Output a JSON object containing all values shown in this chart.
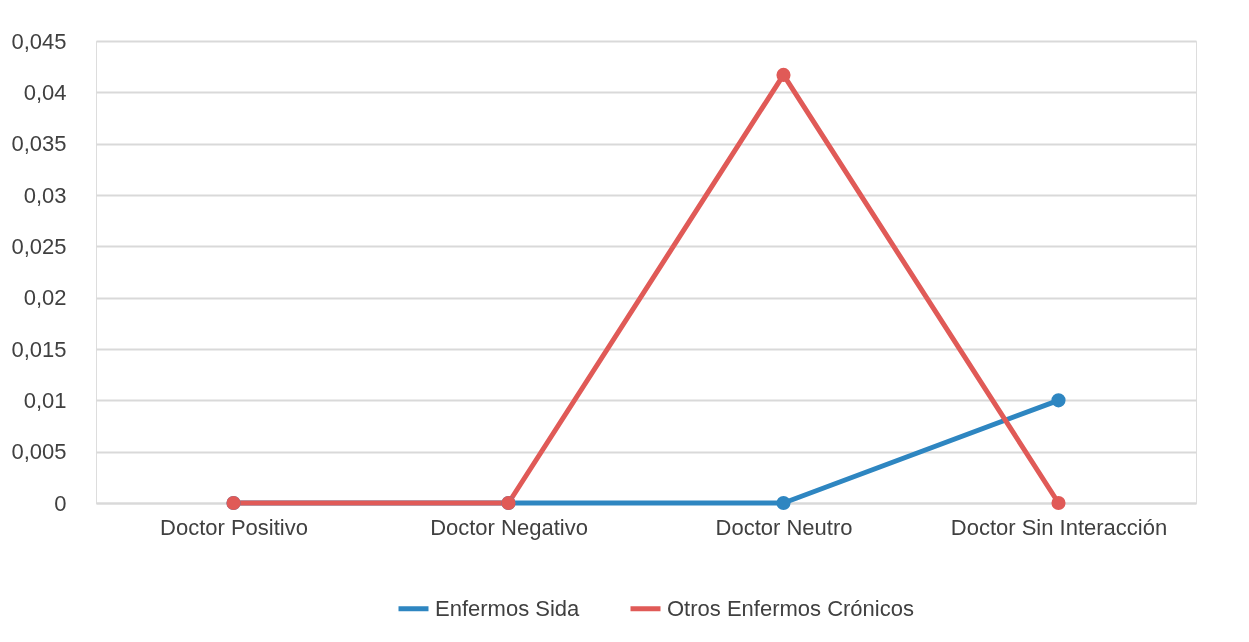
{
  "chart_data": {
    "type": "line",
    "categories": [
      "Doctor Positivo",
      "Doctor Negativo",
      "Doctor Neutro",
      "Doctor Sin Interacción"
    ],
    "series": [
      {
        "name": "Enfermos Sida",
        "color": "#2e86c1",
        "values": [
          0,
          0,
          0,
          0.01
        ]
      },
      {
        "name": "Otros Enfermos Crónicos",
        "color": "#e05a57",
        "values": [
          0,
          0,
          0.0417,
          0
        ]
      }
    ],
    "ylim": [
      0,
      0.045
    ],
    "yticks": [
      {
        "value": 0,
        "label": "0"
      },
      {
        "value": 0.005,
        "label": "0,005"
      },
      {
        "value": 0.01,
        "label": "0,01"
      },
      {
        "value": 0.015,
        "label": "0,015"
      },
      {
        "value": 0.02,
        "label": "0,02"
      },
      {
        "value": 0.025,
        "label": "0,025"
      },
      {
        "value": 0.03,
        "label": "0,03"
      },
      {
        "value": 0.035,
        "label": "0,035"
      },
      {
        "value": 0.04,
        "label": "0,04"
      },
      {
        "value": 0.045,
        "label": "0,045"
      }
    ],
    "grid": "y",
    "legend": "bottom",
    "marker": "circle",
    "line_style": "solid"
  }
}
